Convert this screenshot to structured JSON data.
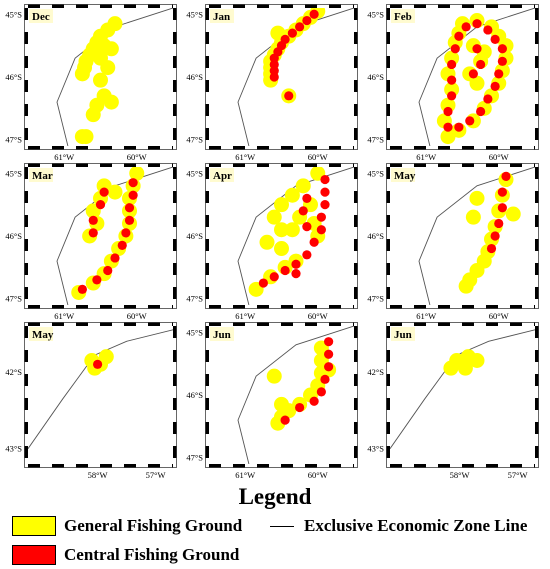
{
  "colors": {
    "general": "#ffff00",
    "central": "#ff0000",
    "eez": "#555555"
  },
  "legend": {
    "title": "Legend",
    "general": "General Fishing Ground",
    "central": "Central Fishing Ground",
    "eez": "Exclusive Economic Zone Line"
  },
  "panels": [
    {
      "label": "Dec",
      "region": "A",
      "lat_ticks": [
        "45°S",
        "46°S",
        "47°S"
      ],
      "lon_ticks": [
        "61°W",
        "60°W"
      ],
      "general": [
        [
          -60.3,
          -45.15
        ],
        [
          -60.4,
          -45.25
        ],
        [
          -60.5,
          -45.35
        ],
        [
          -60.55,
          -45.45
        ],
        [
          -60.6,
          -45.55
        ],
        [
          -60.65,
          -45.65
        ],
        [
          -60.7,
          -45.75
        ],
        [
          -60.72,
          -45.85
        ],
        [
          -60.75,
          -45.95
        ],
        [
          -60.45,
          -45.5
        ],
        [
          -60.35,
          -45.55
        ],
        [
          -60.5,
          -45.7
        ],
        [
          -60.4,
          -45.85
        ],
        [
          -60.5,
          -46.05
        ],
        [
          -60.45,
          -46.3
        ],
        [
          -60.35,
          -46.4
        ],
        [
          -60.55,
          -46.45
        ],
        [
          -60.6,
          -46.6
        ],
        [
          -60.7,
          -46.95
        ],
        [
          -60.75,
          -46.95
        ]
      ],
      "central": []
    },
    {
      "label": "Jan",
      "region": "A",
      "lat_ticks": [
        "45°S",
        "46°S",
        "47°S"
      ],
      "lon_ticks": [
        "61°W",
        "60°W"
      ],
      "general": [
        [
          -60.0,
          -44.95
        ],
        [
          -60.1,
          -45.05
        ],
        [
          -60.2,
          -45.15
        ],
        [
          -60.3,
          -45.25
        ],
        [
          -60.4,
          -45.35
        ],
        [
          -60.5,
          -45.45
        ],
        [
          -60.55,
          -45.55
        ],
        [
          -60.6,
          -45.65
        ],
        [
          -60.65,
          -45.75
        ],
        [
          -60.65,
          -45.85
        ],
        [
          -60.65,
          -45.95
        ],
        [
          -60.65,
          -46.05
        ],
        [
          -60.4,
          -46.3
        ],
        [
          -60.55,
          -45.3
        ]
      ],
      "central": [
        [
          -60.05,
          -45.0
        ],
        [
          -60.15,
          -45.1
        ],
        [
          -60.25,
          -45.2
        ],
        [
          -60.35,
          -45.3
        ],
        [
          -60.45,
          -45.4
        ],
        [
          -60.5,
          -45.5
        ],
        [
          -60.55,
          -45.6
        ],
        [
          -60.6,
          -45.7
        ],
        [
          -60.6,
          -45.8
        ],
        [
          -60.6,
          -45.9
        ],
        [
          -60.6,
          -46.0
        ],
        [
          -60.4,
          -46.3
        ]
      ]
    },
    {
      "label": "Feb",
      "region": "A",
      "lat_ticks": [
        "45°S",
        "46°S",
        "47°S"
      ],
      "lon_ticks": [
        "61°W",
        "60°W"
      ],
      "general": [
        [
          -60.5,
          -45.15
        ],
        [
          -60.3,
          -45.1
        ],
        [
          -60.1,
          -45.2
        ],
        [
          -60.0,
          -45.35
        ],
        [
          -59.9,
          -45.5
        ],
        [
          -59.9,
          -45.7
        ],
        [
          -59.95,
          -45.9
        ],
        [
          -60.0,
          -46.1
        ],
        [
          -60.1,
          -46.3
        ],
        [
          -60.2,
          -46.5
        ],
        [
          -60.35,
          -46.7
        ],
        [
          -60.55,
          -46.85
        ],
        [
          -60.7,
          -46.95
        ],
        [
          -60.75,
          -46.7
        ],
        [
          -60.7,
          -46.45
        ],
        [
          -60.65,
          -46.2
        ],
        [
          -60.7,
          -45.95
        ],
        [
          -60.65,
          -45.7
        ],
        [
          -60.6,
          -45.45
        ],
        [
          -60.55,
          -45.3
        ],
        [
          -60.35,
          -45.5
        ],
        [
          -60.25,
          -45.75
        ],
        [
          -60.4,
          -45.95
        ],
        [
          -60.3,
          -46.1
        ],
        [
          -60.2,
          -45.6
        ]
      ],
      "central": [
        [
          -60.45,
          -45.2
        ],
        [
          -60.3,
          -45.15
        ],
        [
          -60.15,
          -45.25
        ],
        [
          -60.05,
          -45.4
        ],
        [
          -59.95,
          -45.55
        ],
        [
          -59.95,
          -45.75
        ],
        [
          -60.0,
          -45.95
        ],
        [
          -60.05,
          -46.15
        ],
        [
          -60.15,
          -46.35
        ],
        [
          -60.25,
          -46.55
        ],
        [
          -60.4,
          -46.7
        ],
        [
          -60.55,
          -46.8
        ],
        [
          -60.7,
          -46.8
        ],
        [
          -60.7,
          -46.55
        ],
        [
          -60.65,
          -46.3
        ],
        [
          -60.65,
          -46.05
        ],
        [
          -60.65,
          -45.8
        ],
        [
          -60.6,
          -45.55
        ],
        [
          -60.55,
          -45.35
        ],
        [
          -60.3,
          -45.55
        ],
        [
          -60.25,
          -45.8
        ],
        [
          -60.35,
          -45.95
        ]
      ]
    },
    {
      "label": "Mar",
      "region": "A",
      "lat_ticks": [
        "45°S",
        "46°S",
        "47°S"
      ],
      "lon_ticks": [
        "61°W",
        "60°W"
      ],
      "general": [
        [
          -60.0,
          -45.0
        ],
        [
          -60.05,
          -45.2
        ],
        [
          -60.1,
          -45.4
        ],
        [
          -60.1,
          -45.6
        ],
        [
          -60.1,
          -45.8
        ],
        [
          -60.15,
          -46.0
        ],
        [
          -60.25,
          -46.2
        ],
        [
          -60.35,
          -46.4
        ],
        [
          -60.45,
          -46.6
        ],
        [
          -60.6,
          -46.75
        ],
        [
          -60.8,
          -46.9
        ],
        [
          -60.5,
          -45.4
        ],
        [
          -60.6,
          -45.6
        ],
        [
          -60.55,
          -45.8
        ],
        [
          -60.65,
          -46.0
        ],
        [
          -60.3,
          -45.3
        ],
        [
          -60.45,
          -45.2
        ]
      ],
      "central": [
        [
          -60.05,
          -45.15
        ],
        [
          -60.05,
          -45.35
        ],
        [
          -60.1,
          -45.55
        ],
        [
          -60.1,
          -45.75
        ],
        [
          -60.15,
          -45.95
        ],
        [
          -60.2,
          -46.15
        ],
        [
          -60.3,
          -46.35
        ],
        [
          -60.4,
          -46.55
        ],
        [
          -60.55,
          -46.7
        ],
        [
          -60.75,
          -46.85
        ],
        [
          -60.45,
          -45.3
        ],
        [
          -60.5,
          -45.5
        ],
        [
          -60.6,
          -45.75
        ],
        [
          -60.6,
          -45.95
        ]
      ]
    },
    {
      "label": "Apr",
      "region": "A",
      "lat_ticks": [
        "45°S",
        "46°S",
        "47°S"
      ],
      "lon_ticks": [
        "61°W",
        "60°W"
      ],
      "general": [
        [
          -60.0,
          -45.0
        ],
        [
          -60.2,
          -45.2
        ],
        [
          -60.35,
          -45.35
        ],
        [
          -60.5,
          -45.5
        ],
        [
          -60.6,
          -45.7
        ],
        [
          -60.5,
          -45.9
        ],
        [
          -60.7,
          -46.1
        ],
        [
          -60.5,
          -46.2
        ],
        [
          -60.3,
          -46.4
        ],
        [
          -60.45,
          -46.5
        ],
        [
          -60.65,
          -46.65
        ],
        [
          -60.85,
          -46.85
        ],
        [
          -60.1,
          -45.5
        ],
        [
          -60.05,
          -45.8
        ],
        [
          -60.0,
          -46.0
        ],
        [
          -60.25,
          -45.7
        ],
        [
          -60.35,
          -45.9
        ]
      ],
      "central": [
        [
          -59.9,
          -45.1
        ],
        [
          -59.9,
          -45.3
        ],
        [
          -59.9,
          -45.5
        ],
        [
          -59.95,
          -45.7
        ],
        [
          -59.95,
          -45.9
        ],
        [
          -60.05,
          -46.1
        ],
        [
          -60.15,
          -46.3
        ],
        [
          -60.3,
          -46.45
        ],
        [
          -60.45,
          -46.55
        ],
        [
          -60.6,
          -46.65
        ],
        [
          -60.75,
          -46.75
        ],
        [
          -60.15,
          -45.4
        ],
        [
          -60.2,
          -45.6
        ],
        [
          -60.15,
          -45.85
        ],
        [
          -60.3,
          -46.6
        ]
      ]
    },
    {
      "label": "May",
      "region": "A",
      "lat_ticks": [
        "45°S",
        "46°S",
        "47°S"
      ],
      "lon_ticks": [
        "61°W",
        "60°W"
      ],
      "general": [
        [
          -59.9,
          -45.1
        ],
        [
          -59.95,
          -45.35
        ],
        [
          -60.0,
          -45.6
        ],
        [
          -60.05,
          -45.85
        ],
        [
          -60.1,
          -46.05
        ],
        [
          -60.15,
          -46.25
        ],
        [
          -60.2,
          -46.4
        ],
        [
          -60.3,
          -45.4
        ],
        [
          -60.35,
          -45.7
        ],
        [
          -60.3,
          -46.55
        ],
        [
          -60.4,
          -46.7
        ],
        [
          -60.45,
          -46.8
        ],
        [
          -59.8,
          -45.65
        ]
      ],
      "central": [
        [
          -59.9,
          -45.05
        ],
        [
          -59.95,
          -45.3
        ],
        [
          -59.95,
          -45.55
        ],
        [
          -60.0,
          -45.8
        ],
        [
          -60.05,
          -46.0
        ],
        [
          -60.1,
          -46.2
        ]
      ]
    },
    {
      "label": "May",
      "region": "B",
      "lat_ticks": [
        "42°S",
        "43°S"
      ],
      "lon_ticks": [
        "58°W",
        "57°W"
      ],
      "general": [
        [
          -58.1,
          -41.85
        ],
        [
          -57.95,
          -41.9
        ],
        [
          -57.85,
          -41.8
        ],
        [
          -58.05,
          -41.95
        ]
      ],
      "central": [
        [
          -58.0,
          -41.9
        ]
      ]
    },
    {
      "label": "Jun",
      "region": "A",
      "lat_ticks": [
        "45°S",
        "46°S",
        "47°S"
      ],
      "lon_ticks": [
        "61°W",
        "60°W"
      ],
      "general": [
        [
          -59.95,
          -45.25
        ],
        [
          -59.95,
          -45.45
        ],
        [
          -59.95,
          -45.65
        ],
        [
          -60.0,
          -45.85
        ],
        [
          -60.1,
          -46.0
        ],
        [
          -60.25,
          -46.15
        ],
        [
          -60.4,
          -46.25
        ],
        [
          -60.5,
          -46.35
        ],
        [
          -60.55,
          -46.45
        ],
        [
          -60.6,
          -45.7
        ],
        [
          -60.5,
          -46.15
        ],
        [
          -59.85,
          -45.6
        ]
      ],
      "central": [
        [
          -59.85,
          -45.15
        ],
        [
          -59.85,
          -45.35
        ],
        [
          -59.85,
          -45.55
        ],
        [
          -59.9,
          -45.75
        ],
        [
          -59.95,
          -45.95
        ],
        [
          -60.05,
          -46.1
        ],
        [
          -60.25,
          -46.2
        ],
        [
          -60.45,
          -46.4
        ]
      ]
    },
    {
      "label": "Jun",
      "region": "B",
      "lat_ticks": [
        "42°S",
        "43°S"
      ],
      "lon_ticks": [
        "58°W",
        "57°W"
      ],
      "general": [
        [
          -58.05,
          -41.85
        ],
        [
          -57.85,
          -41.8
        ],
        [
          -57.7,
          -41.85
        ],
        [
          -57.9,
          -41.95
        ],
        [
          -58.15,
          -41.95
        ]
      ],
      "central": []
    }
  ]
}
